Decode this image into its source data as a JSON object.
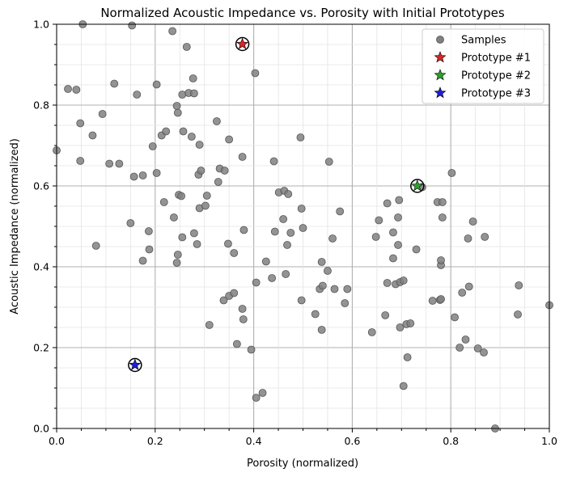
{
  "chart_data": {
    "type": "scatter",
    "title": "Normalized Acoustic Impedance vs. Porosity with Initial Prototypes",
    "xlabel": "Porosity (normalized)",
    "ylabel": "Acoustic Impedance (normalized)",
    "xlim": [
      0,
      1
    ],
    "ylim": [
      0,
      1
    ],
    "xticks": [
      "0.0",
      "0.2",
      "0.4",
      "0.6",
      "0.8",
      "1.0"
    ],
    "yticks": [
      "0.0",
      "0.2",
      "0.4",
      "0.6",
      "0.8",
      "1.0"
    ],
    "grid": "major and minor",
    "legend_position": "top-right",
    "series": [
      {
        "name": "Samples",
        "marker": "circle",
        "color": "#808080",
        "points": [
          [
            0.0,
            0.688
          ],
          [
            0.023,
            0.84
          ],
          [
            0.04,
            0.838
          ],
          [
            0.053,
            1.0
          ],
          [
            0.048,
            0.755
          ],
          [
            0.048,
            0.662
          ],
          [
            0.073,
            0.725
          ],
          [
            0.08,
            0.452
          ],
          [
            0.093,
            0.778
          ],
          [
            0.107,
            0.655
          ],
          [
            0.117,
            0.853
          ],
          [
            0.127,
            0.655
          ],
          [
            0.15,
            0.508
          ],
          [
            0.153,
            0.997
          ],
          [
            0.157,
            0.623
          ],
          [
            0.163,
            0.826
          ],
          [
            0.175,
            0.626
          ],
          [
            0.175,
            0.415
          ],
          [
            0.187,
            0.488
          ],
          [
            0.188,
            0.443
          ],
          [
            0.195,
            0.698
          ],
          [
            0.203,
            0.632
          ],
          [
            0.203,
            0.851
          ],
          [
            0.213,
            0.725
          ],
          [
            0.218,
            0.56
          ],
          [
            0.222,
            0.735
          ],
          [
            0.235,
            0.983
          ],
          [
            0.238,
            0.522
          ],
          [
            0.244,
            0.798
          ],
          [
            0.246,
            0.781
          ],
          [
            0.244,
            0.41
          ],
          [
            0.246,
            0.43
          ],
          [
            0.248,
            0.578
          ],
          [
            0.253,
            0.575
          ],
          [
            0.255,
            0.473
          ],
          [
            0.255,
            0.826
          ],
          [
            0.257,
            0.735
          ],
          [
            0.264,
            0.944
          ],
          [
            0.268,
            0.83
          ],
          [
            0.274,
            0.722
          ],
          [
            0.277,
            0.866
          ],
          [
            0.279,
            0.483
          ],
          [
            0.279,
            0.829
          ],
          [
            0.285,
            0.456
          ],
          [
            0.288,
            0.628
          ],
          [
            0.29,
            0.702
          ],
          [
            0.29,
            0.545
          ],
          [
            0.293,
            0.638
          ],
          [
            0.302,
            0.551
          ],
          [
            0.305,
            0.576
          ],
          [
            0.31,
            0.256
          ],
          [
            0.325,
            0.76
          ],
          [
            0.328,
            0.61
          ],
          [
            0.331,
            0.643
          ],
          [
            0.339,
            0.317
          ],
          [
            0.341,
            0.638
          ],
          [
            0.348,
            0.457
          ],
          [
            0.35,
            0.328
          ],
          [
            0.35,
            0.715
          ],
          [
            0.36,
            0.335
          ],
          [
            0.36,
            0.434
          ],
          [
            0.366,
            0.209
          ],
          [
            0.377,
            0.672
          ],
          [
            0.377,
            0.296
          ],
          [
            0.379,
            0.27
          ],
          [
            0.38,
            0.491
          ],
          [
            0.395,
            0.195
          ],
          [
            0.403,
            0.879
          ],
          [
            0.405,
            0.361
          ],
          [
            0.405,
            0.076
          ],
          [
            0.418,
            0.088
          ],
          [
            0.425,
            0.413
          ],
          [
            0.437,
            0.372
          ],
          [
            0.441,
            0.661
          ],
          [
            0.443,
            0.487
          ],
          [
            0.451,
            0.584
          ],
          [
            0.46,
            0.518
          ],
          [
            0.462,
            0.588
          ],
          [
            0.465,
            0.382
          ],
          [
            0.468,
            0.454
          ],
          [
            0.47,
            0.58
          ],
          [
            0.475,
            0.484
          ],
          [
            0.495,
            0.72
          ],
          [
            0.497,
            0.544
          ],
          [
            0.497,
            0.317
          ],
          [
            0.5,
            0.496
          ],
          [
            0.525,
            0.283
          ],
          [
            0.534,
            0.345
          ],
          [
            0.538,
            0.412
          ],
          [
            0.538,
            0.244
          ],
          [
            0.54,
            0.353
          ],
          [
            0.55,
            0.39
          ],
          [
            0.553,
            0.66
          ],
          [
            0.56,
            0.47
          ],
          [
            0.564,
            0.345
          ],
          [
            0.575,
            0.537
          ],
          [
            0.585,
            0.31
          ],
          [
            0.59,
            0.345
          ],
          [
            0.64,
            0.238
          ],
          [
            0.648,
            0.474
          ],
          [
            0.654,
            0.515
          ],
          [
            0.667,
            0.28
          ],
          [
            0.671,
            0.557
          ],
          [
            0.671,
            0.36
          ],
          [
            0.683,
            0.485
          ],
          [
            0.683,
            0.421
          ],
          [
            0.688,
            0.357
          ],
          [
            0.693,
            0.454
          ],
          [
            0.693,
            0.522
          ],
          [
            0.695,
            0.565
          ],
          [
            0.697,
            0.362
          ],
          [
            0.697,
            0.25
          ],
          [
            0.704,
            0.366
          ],
          [
            0.704,
            0.105
          ],
          [
            0.71,
            0.258
          ],
          [
            0.712,
            0.176
          ],
          [
            0.718,
            0.26
          ],
          [
            0.73,
            0.443
          ],
          [
            0.742,
            0.597
          ],
          [
            0.763,
            0.316
          ],
          [
            0.773,
            0.56
          ],
          [
            0.778,
            0.318
          ],
          [
            0.78,
            0.32
          ],
          [
            0.78,
            0.404
          ],
          [
            0.78,
            0.416
          ],
          [
            0.783,
            0.522
          ],
          [
            0.783,
            0.56
          ],
          [
            0.802,
            0.632
          ],
          [
            0.808,
            0.275
          ],
          [
            0.818,
            0.2
          ],
          [
            0.823,
            0.336
          ],
          [
            0.83,
            0.22
          ],
          [
            0.835,
            0.47
          ],
          [
            0.837,
            0.351
          ],
          [
            0.845,
            0.512
          ],
          [
            0.855,
            0.198
          ],
          [
            0.867,
            0.188
          ],
          [
            0.869,
            0.474
          ],
          [
            0.89,
            0.0
          ],
          [
            0.936,
            0.282
          ],
          [
            0.938,
            0.354
          ],
          [
            1.0,
            0.305
          ]
        ]
      },
      {
        "name": "Prototype #1",
        "marker": "star",
        "color": "#d62728",
        "points": [
          [
            0.377,
            0.951
          ]
        ]
      },
      {
        "name": "Prototype #2",
        "marker": "star",
        "color": "#2ca02c",
        "points": [
          [
            0.732,
            0.6
          ]
        ]
      },
      {
        "name": "Prototype #3",
        "marker": "star",
        "color": "#1f1fd6",
        "points": [
          [
            0.159,
            0.157
          ]
        ]
      }
    ]
  }
}
